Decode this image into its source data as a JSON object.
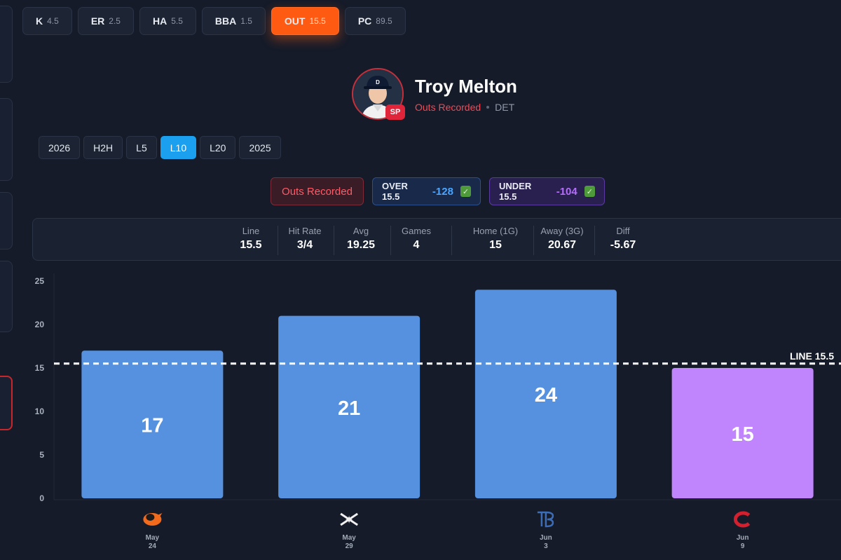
{
  "prop_tabs": [
    {
      "label": "K",
      "line": "4.5"
    },
    {
      "label": "ER",
      "line": "2.5"
    },
    {
      "label": "HA",
      "line": "5.5"
    },
    {
      "label": "BBA",
      "line": "1.5"
    },
    {
      "label": "OUT",
      "line": "15.5"
    },
    {
      "label": "PC",
      "line": "89.5"
    }
  ],
  "active_prop": "OUT",
  "player": {
    "name": "Troy Melton",
    "stat": "Outs Recorded",
    "team": "DET",
    "position_badge": "SP",
    "cap_logo": "D"
  },
  "range_tabs": [
    "2026",
    "H2H",
    "L5",
    "L10",
    "L20",
    "2025"
  ],
  "active_range": "L10",
  "pills": {
    "stat_label": "Outs Recorded",
    "over_label": "OVER 15.5",
    "over_odds": "-128",
    "under_label": "UNDER 15.5",
    "under_odds": "-104",
    "book_icon": "sportsbook-icon"
  },
  "stats": {
    "line_label": "Line",
    "line_value": "15.5",
    "hit_rate_label": "Hit Rate",
    "hit_rate_value": "3/4",
    "avg_label": "Avg",
    "avg_value": "19.25",
    "games_label": "Games",
    "games_value": "4",
    "home_label": "Home (1G)",
    "home_value": "15",
    "away_label": "Away (3G)",
    "away_value": "20.67",
    "diff_label": "Diff",
    "diff_value": "-5.67"
  },
  "colors": {
    "over_bar": "#5591de",
    "under_bar": "#c084fc",
    "accent": "#ff5a12",
    "active_range": "#1aa0ee"
  },
  "chart_data": {
    "type": "bar",
    "categories": [
      "May 24",
      "May 29",
      "Jun 3",
      "Jun 9"
    ],
    "date_month": [
      "May",
      "May",
      "Jun",
      "Jun"
    ],
    "date_day": [
      "24",
      "29",
      "3",
      "9"
    ],
    "opponent_icons": [
      "orioles-logo-icon",
      "white-sox-logo-icon",
      "rays-logo-icon",
      "reds-logo-icon"
    ],
    "values": [
      17,
      21,
      24,
      15
    ],
    "reference_line": {
      "value": 15.5,
      "label": "LINE 15.5"
    },
    "ylim": [
      0,
      25
    ],
    "yticks": [
      0,
      5,
      10,
      15,
      20,
      25
    ],
    "grid": false
  }
}
